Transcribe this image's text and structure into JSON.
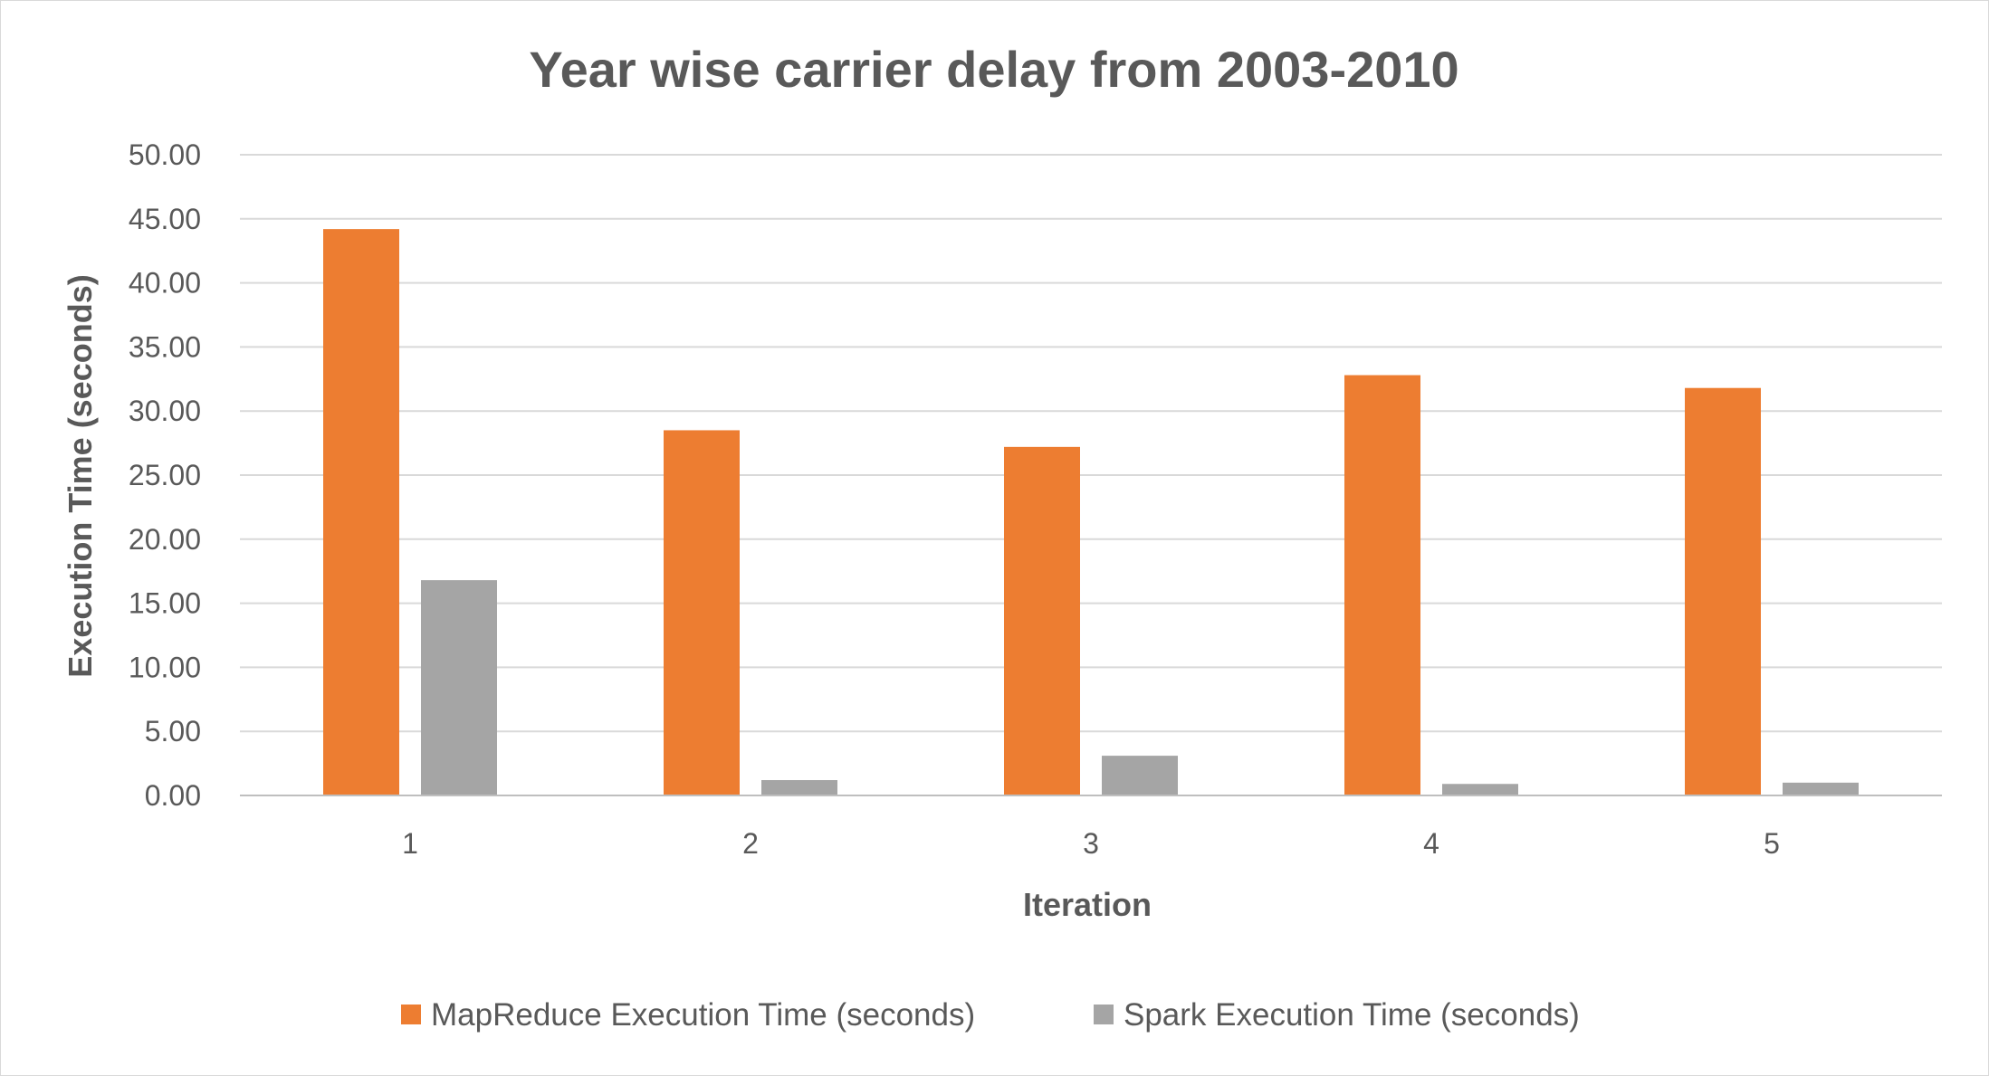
{
  "chart_data": {
    "type": "bar",
    "title": "Year wise carrier delay from 2003-2010",
    "xlabel": "Iteration",
    "ylabel": "Execution Time (seconds)",
    "categories": [
      "1",
      "2",
      "3",
      "4",
      "5"
    ],
    "series": [
      {
        "name": "MapReduce Execution Time (seconds)",
        "color": "#ED7D31",
        "values": [
          44.2,
          28.5,
          27.2,
          32.8,
          31.8
        ]
      },
      {
        "name": "Spark Execution Time (seconds)",
        "color": "#A5A5A5",
        "values": [
          16.8,
          1.2,
          3.1,
          0.9,
          1.0
        ]
      }
    ],
    "ylim": [
      0,
      50
    ],
    "yticks": [
      "0.00",
      "5.00",
      "10.00",
      "15.00",
      "20.00",
      "25.00",
      "30.00",
      "35.00",
      "40.00",
      "45.00",
      "50.00"
    ],
    "grid": true,
    "legend_position": "bottom"
  }
}
